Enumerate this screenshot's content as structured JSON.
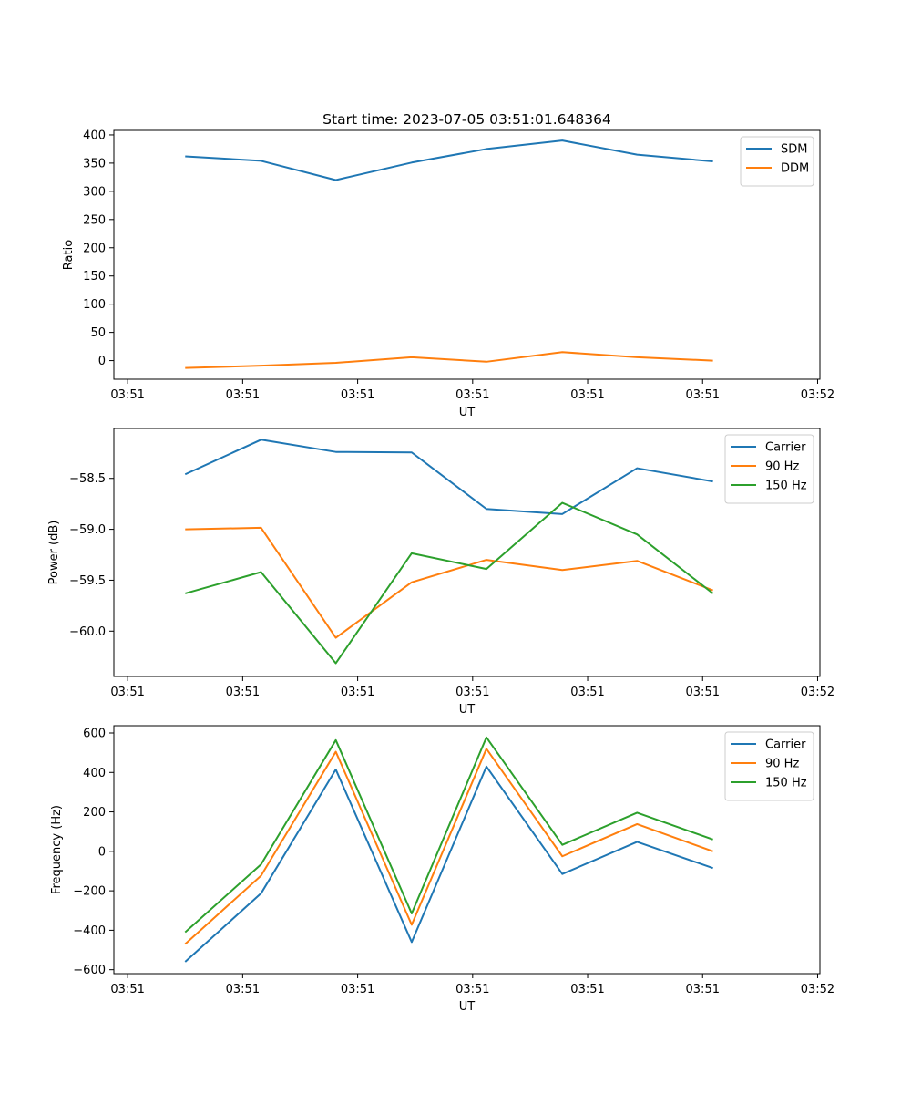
{
  "figure_title": "Start time: 2023-07-05 03:51:01.648364",
  "chart_data": [
    {
      "type": "line",
      "title": "Start time: 2023-07-05 03:51:01.648364",
      "xlabel": "UT",
      "ylabel": "Ratio",
      "x_tick_labels": [
        "03:51",
        "03:51",
        "03:51",
        "03:51",
        "03:51",
        "03:51",
        "03:52"
      ],
      "x_tick_values": [
        0,
        1,
        2,
        3,
        4,
        5,
        6
      ],
      "x": [
        0.5,
        1.16,
        1.81,
        2.47,
        3.12,
        3.78,
        4.43,
        5.09
      ],
      "xlim": [
        -0.12,
        6.02
      ],
      "ylim": [
        -33,
        408
      ],
      "y_ticks": [
        0,
        50,
        100,
        150,
        200,
        250,
        300,
        350,
        400
      ],
      "legend_loc": "upper right",
      "series": [
        {
          "name": "SDM",
          "color": "#1f77b4",
          "values": [
            362,
            354,
            320,
            351,
            375,
            390,
            365,
            353
          ]
        },
        {
          "name": "DDM",
          "color": "#ff7f0e",
          "values": [
            -13,
            -9,
            -4,
            6,
            -2,
            15,
            6,
            0
          ]
        }
      ]
    },
    {
      "type": "line",
      "title": "",
      "xlabel": "UT",
      "ylabel": "Power (dB)",
      "x_tick_labels": [
        "03:51",
        "03:51",
        "03:51",
        "03:51",
        "03:51",
        "03:51",
        "03:52"
      ],
      "x_tick_values": [
        0,
        1,
        2,
        3,
        4,
        5,
        6
      ],
      "x": [
        0.5,
        1.16,
        1.81,
        2.47,
        3.12,
        3.78,
        4.43,
        5.09
      ],
      "xlim": [
        -0.12,
        6.02
      ],
      "ylim": [
        -60.445,
        -58.01
      ],
      "y_ticks": [
        -60.0,
        -59.5,
        -59.0,
        -58.5
      ],
      "y_tick_labels": [
        "−60.0",
        "−59.5",
        "−59.0",
        "−58.5"
      ],
      "legend_loc": "upper right",
      "series": [
        {
          "name": "Carrier",
          "color": "#1f77b4",
          "values": [
            -58.46,
            -58.12,
            -58.24,
            -58.245,
            -58.8,
            -58.85,
            -58.4,
            -58.53
          ]
        },
        {
          "name": "90 Hz",
          "color": "#ff7f0e",
          "values": [
            -59.0,
            -58.985,
            -60.065,
            -59.52,
            -59.3,
            -59.4,
            -59.31,
            -59.6
          ]
        },
        {
          "name": "150 Hz",
          "color": "#2ca02c",
          "values": [
            -59.63,
            -59.42,
            -60.315,
            -59.235,
            -59.39,
            -58.74,
            -59.05,
            -59.63
          ]
        }
      ]
    },
    {
      "type": "line",
      "title": "",
      "xlabel": "UT",
      "ylabel": "Frequency (Hz)",
      "x_tick_labels": [
        "03:51",
        "03:51",
        "03:51",
        "03:51",
        "03:51",
        "03:51",
        "03:52"
      ],
      "x_tick_values": [
        0,
        1,
        2,
        3,
        4,
        5,
        6
      ],
      "x": [
        0.5,
        1.16,
        1.81,
        2.47,
        3.12,
        3.78,
        4.43,
        5.09
      ],
      "xlim": [
        -0.12,
        6.02
      ],
      "ylim": [
        -620,
        637
      ],
      "y_ticks": [
        -600,
        -400,
        -200,
        0,
        200,
        400,
        600
      ],
      "y_tick_labels": [
        "−600",
        "−400",
        "−200",
        "0",
        "200",
        "400",
        "600"
      ],
      "legend_loc": "upper right",
      "series": [
        {
          "name": "Carrier",
          "color": "#1f77b4",
          "values": [
            -560,
            -213,
            415,
            -460,
            430,
            -115,
            48,
            -85
          ]
        },
        {
          "name": "90 Hz",
          "color": "#ff7f0e",
          "values": [
            -470,
            -123,
            505,
            -372,
            520,
            -25,
            138,
            0
          ]
        },
        {
          "name": "150 Hz",
          "color": "#2ca02c",
          "values": [
            -410,
            -66,
            564,
            -315,
            578,
            33,
            196,
            60
          ]
        }
      ]
    }
  ]
}
